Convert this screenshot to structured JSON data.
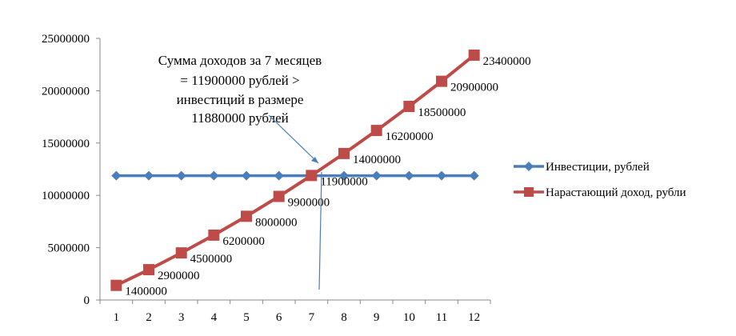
{
  "chart_data": {
    "type": "line",
    "categories": [
      "1",
      "2",
      "3",
      "4",
      "5",
      "6",
      "7",
      "8",
      "9",
      "10",
      "11",
      "12"
    ],
    "ylim": [
      0,
      25000000
    ],
    "y_ticks": [
      "0",
      "5000000",
      "10000000",
      "15000000",
      "20000000",
      "25000000"
    ],
    "grid": false,
    "legend_position": "right",
    "series": [
      {
        "name": "Инвестиции, рублей",
        "color": "#4a7ebb",
        "marker": "diamond",
        "values": [
          11880000,
          11880000,
          11880000,
          11880000,
          11880000,
          11880000,
          11880000,
          11880000,
          11880000,
          11880000,
          11880000,
          11880000
        ]
      },
      {
        "name": "Нарастающий доход, рубли",
        "color": "#be4b48",
        "marker": "square",
        "values": [
          1400000,
          2900000,
          4500000,
          6200000,
          8000000,
          9900000,
          11900000,
          14000000,
          16200000,
          18500000,
          20900000,
          23400000
        ],
        "data_labels": [
          "1400000",
          "2900000",
          "4500000",
          "6200000",
          "8000000",
          "9900000",
          "11900000",
          "14000000",
          "16200000",
          "18500000",
          "20900000",
          "23400000"
        ]
      }
    ],
    "annotation": {
      "lines": [
        "Сумма доходов за 7 месяцев",
        "= 11900000 рублей >",
        "инвестиций в размере",
        "11880000 рублей"
      ]
    }
  }
}
